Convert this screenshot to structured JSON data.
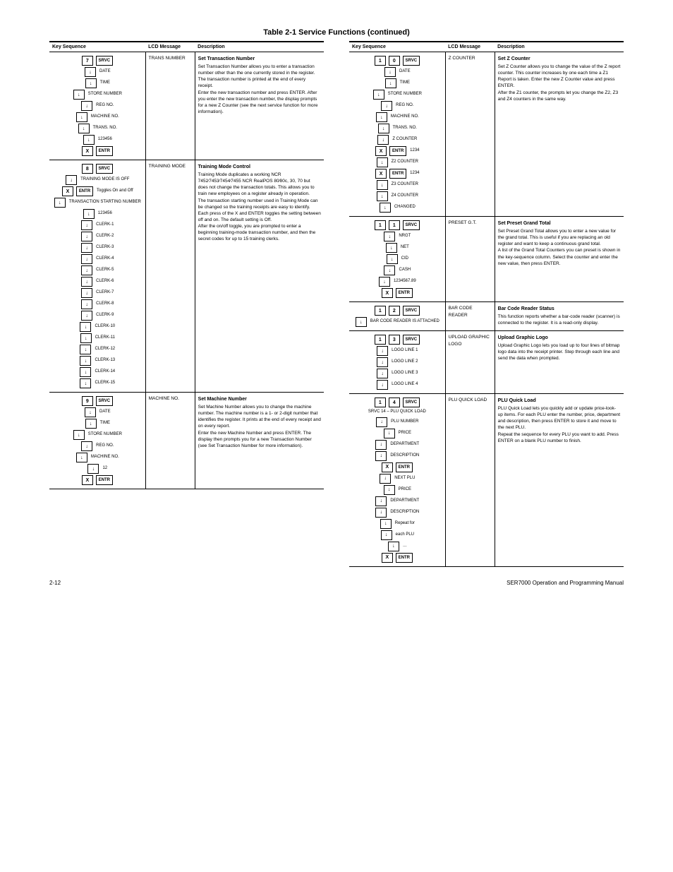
{
  "page_title": "Table 2-1 Service Functions (continued)",
  "headers": [
    "Key Sequence",
    "LCD Message",
    "Description"
  ],
  "footer": {
    "left": "2-12",
    "right": "SER7000 Operation and Programming Manual"
  },
  "left": [
    {
      "id": 7,
      "keys": [
        {
          "type": "head",
          "keys": [
            "7",
            "SRVC"
          ]
        },
        {
          "type": "arrow",
          "label": "DATE"
        },
        {
          "type": "arrow",
          "label": "TIME"
        },
        {
          "type": "arrow",
          "label": "STORE NUMBER"
        },
        {
          "type": "arrow",
          "label": "REG NO."
        },
        {
          "type": "arrow",
          "label": "MACHINE NO."
        },
        {
          "type": "arrow",
          "label": "TRANS. NO."
        },
        {
          "type": "arrow",
          "label": "123456"
        },
        {
          "type": "end",
          "keys": [
            "X",
            "ENTR"
          ]
        }
      ],
      "lcd": "TRANS NUMBER",
      "desc_title": "Set Transaction Number",
      "desc": [
        "Set Transaction Number allows you to enter a transaction number other than the one currently stored in the register. The transaction number is printed at the end of every receipt.",
        "Enter the new transaction number and press ENTER. After you enter the new transaction number, the display prompts for a new Z Counter (see the next service function for more information)."
      ]
    },
    {
      "id": 8,
      "keys": [
        {
          "type": "head",
          "keys": [
            "8",
            "SRVC"
          ]
        },
        {
          "type": "arrow",
          "label": "TRAINING MODE IS OFF"
        },
        {
          "type": "end2",
          "keys": [
            "X",
            "ENTR"
          ],
          "label": "Toggles On and Off"
        },
        {
          "type": "arrow",
          "label": "TRANSACTION STARTING NUMBER"
        },
        {
          "type": "arrow",
          "label": "123456"
        },
        {
          "type": "arrow",
          "label": "CLERK-1"
        },
        {
          "type": "arrow",
          "label": "CLERK-2"
        },
        {
          "type": "arrow",
          "label": "CLERK-3"
        },
        {
          "type": "arrow",
          "label": "CLERK-4"
        },
        {
          "type": "arrow",
          "label": "CLERK-5"
        },
        {
          "type": "arrow",
          "label": "CLERK-6"
        },
        {
          "type": "arrow",
          "label": "CLERK-7"
        },
        {
          "type": "arrow",
          "label": "CLERK-8"
        },
        {
          "type": "arrow",
          "label": "CLERK-9"
        },
        {
          "type": "arrow",
          "label": "CLERK-10"
        },
        {
          "type": "arrow",
          "label": "CLERK-11"
        },
        {
          "type": "arrow",
          "label": "CLERK-12"
        },
        {
          "type": "arrow",
          "label": "CLERK-13"
        },
        {
          "type": "arrow",
          "label": "CLERK-14"
        },
        {
          "type": "arrow",
          "label": "CLERK-15"
        }
      ],
      "lcd": "TRAINING MODE",
      "desc_title": "Training Mode Control",
      "desc": [
        "Training Mode duplicates a working NCR 7452⁄7453⁄7454⁄7455 NCR RealPOS 80⁄80c, 30, 70 but does not change the transaction totals. This allows you to train new employees on a register already in operation.",
        "The transaction starting number used in Training Mode can be changed so the training receipts are easy to identify.",
        "Each press of the X and ENTER toggles the setting between off and on. The default setting is Off.",
        "After the on/off toggle, you are prompted to enter a beginning training-mode transaction number, and then the secret codes for up to 15 training clerks."
      ]
    },
    {
      "id": 9,
      "keys": [
        {
          "type": "head",
          "keys": [
            "9",
            "SRVC"
          ]
        },
        {
          "type": "arrow",
          "label": "DATE"
        },
        {
          "type": "arrow",
          "label": "TIME"
        },
        {
          "type": "arrow",
          "label": "STORE NUMBER"
        },
        {
          "type": "arrow",
          "label": "REG NO."
        },
        {
          "type": "arrow",
          "label": "MACHINE NO."
        },
        {
          "type": "arrow",
          "label": "12"
        },
        {
          "type": "end",
          "keys": [
            "X",
            "ENTR"
          ]
        }
      ],
      "lcd": "MACHINE NO.",
      "desc_title": "Set Machine Number",
      "desc": [
        "Set Machine Number allows you to change the machine number. The machine number is a 1- or 2-digit number that identifies the register. It prints at the end of every receipt and on every report.",
        "Enter the new Machine Number and press ENTER. The display then prompts you for a new Transaction Number (see Set Transaction Number for more information)."
      ]
    }
  ],
  "right": [
    {
      "id": 10,
      "keys": [
        {
          "type": "head",
          "keys": [
            "1",
            "0",
            "SRVC"
          ]
        },
        {
          "type": "arrow",
          "label": "DATE"
        },
        {
          "type": "arrow",
          "label": "TIME"
        },
        {
          "type": "arrow",
          "label": "STORE NUMBER"
        },
        {
          "type": "arrow",
          "label": "REG NO."
        },
        {
          "type": "arrow",
          "label": "MACHINE NO."
        },
        {
          "type": "arrow",
          "label": "TRANS. NO."
        },
        {
          "type": "arrow",
          "label": "Z COUNTER"
        },
        {
          "type": "end2",
          "keys": [
            "X",
            "ENTR"
          ],
          "label": "1234"
        },
        {
          "type": "arrow",
          "label": "Z2 COUNTER"
        },
        {
          "type": "end2",
          "keys": [
            "X",
            "ENTR"
          ],
          "label": "1234"
        },
        {
          "type": "arrow",
          "label": "Z3 COUNTER"
        },
        {
          "type": "arrow",
          "label": "Z4 COUNTER"
        },
        {
          "type": "arrow",
          "label": "CHANGED"
        }
      ],
      "lcd": "Z COUNTER",
      "desc_title": "Set Z Counter",
      "desc": [
        "Set Z Counter allows you to change the value of the Z report counter. This counter increases by one each time a Z1 Report is taken. Enter the new Z Counter value and press ENTER.",
        "After the Z1 counter, the prompts let you change the Z2, Z3 and Z4 counters in the same way."
      ]
    },
    {
      "id": 11,
      "keys": [
        {
          "type": "head",
          "keys": [
            "1",
            "1",
            "SRVC"
          ]
        },
        {
          "type": "arrow",
          "label": "NRGT"
        },
        {
          "type": "arrow",
          "label": "NET"
        },
        {
          "type": "arrow",
          "label": "CID"
        },
        {
          "type": "arrow",
          "label": "CASH"
        },
        {
          "type": "arrow",
          "label": "1234567.89"
        },
        {
          "type": "end",
          "keys": [
            "X",
            "ENTR"
          ]
        }
      ],
      "lcd": "PRESET G.T.",
      "desc_title": "Set Preset Grand Total",
      "desc": [
        "Set Preset Grand Total allows you to enter a new value for the grand total. This is useful if you are replacing an old register and want to keep a continuous grand total.",
        "A list of the Grand Total Counters you can preset is shown in the key-sequence column. Select the counter and enter the new value, then press ENTER."
      ]
    },
    {
      "id": 12,
      "keys": [
        {
          "type": "head",
          "keys": [
            "1",
            "2",
            "SRVC"
          ]
        },
        {
          "type": "arrow",
          "label": "BAR CODE READER IS ATTACHED"
        }
      ],
      "lcd": "BAR CODE READER",
      "desc_title": "Bar Code Reader Status",
      "desc": [
        "This function reports whether a bar-code reader (scanner) is connected to the register. It is a read-only display."
      ]
    },
    {
      "id": 13,
      "keys": [
        {
          "type": "head",
          "keys": [
            "1",
            "3",
            "SRVC"
          ]
        },
        {
          "type": "arrow",
          "label": "LOGO LINE 1"
        },
        {
          "type": "arrow",
          "label": "LOGO LINE 2"
        },
        {
          "type": "arrow",
          "label": "LOGO LINE 3"
        },
        {
          "type": "arrow",
          "label": "LOGO LINE 4"
        }
      ],
      "lcd": "UPLOAD GRAPHIC LOGO",
      "desc_title": "Upload Graphic Logo",
      "desc": [
        "Upload Graphic Logo lets you load up to four lines of bitmap logo data into the receipt printer. Step through each line and send the data when prompted."
      ]
    },
    {
      "id": 14,
      "keys": [
        {
          "type": "head",
          "keys": [
            "1",
            "4",
            "SRVC"
          ]
        },
        {
          "type": "srvc-line",
          "label": "SRVC 14 – PLU QUICK LOAD"
        },
        {
          "type": "arrow",
          "label": "PLU NUMBER"
        },
        {
          "type": "arrow",
          "label": "PRICE"
        },
        {
          "type": "arrow",
          "label": "DEPARTMENT"
        },
        {
          "type": "arrow",
          "label": "DESCRIPTION"
        },
        {
          "type": "end",
          "keys": [
            "X",
            "ENTR"
          ]
        },
        {
          "type": "arrow",
          "label": "NEXT PLU"
        },
        {
          "type": "arrow",
          "label": "PRICE"
        },
        {
          "type": "arrow",
          "label": "DEPARTMENT"
        },
        {
          "type": "arrow",
          "label": "DESCRIPTION"
        },
        {
          "type": "arrow",
          "label": "Repeat for"
        },
        {
          "type": "arrow",
          "label": "each PLU"
        },
        {
          "type": "arrow",
          "label": "…"
        },
        {
          "type": "end",
          "keys": [
            "X",
            "ENTR"
          ]
        }
      ],
      "lcd": "PLU QUICK LOAD",
      "desc_title": "PLU Quick Load",
      "desc": [
        "PLU Quick Load lets you quickly add or update price-look-up items. For each PLU enter the number, price, department and description, then press ENTER to store it and move to the next PLU.",
        "Repeat the sequence for every PLU you want to add. Press ENTER on a blank PLU number to finish."
      ]
    }
  ]
}
